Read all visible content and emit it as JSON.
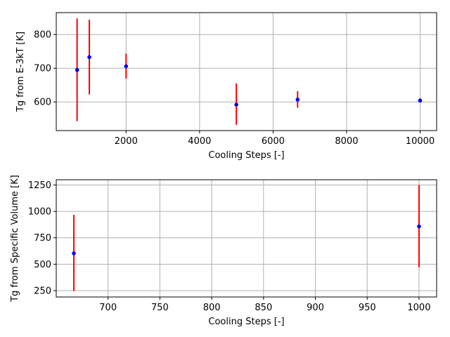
{
  "chart_data": [
    {
      "type": "scatter",
      "title": "",
      "xlabel": "Cooling Steps [-]",
      "ylabel": "Tg from E-3kT [K]",
      "xlim": [
        100,
        10450
      ],
      "ylim": [
        515,
        865
      ],
      "xticks": [
        2000,
        4000,
        6000,
        8000,
        10000
      ],
      "yticks": [
        600,
        700,
        800
      ],
      "grid": true,
      "marker_color": "#0000ff",
      "errorbar_color": "#ff0000",
      "points": [
        {
          "x": 667,
          "y": 695,
          "err_low": 543,
          "err_high": 848
        },
        {
          "x": 1000,
          "y": 733,
          "err_low": 622,
          "err_high": 844
        },
        {
          "x": 2000,
          "y": 706,
          "err_low": 669,
          "err_high": 743
        },
        {
          "x": 5000,
          "y": 592,
          "err_low": 532,
          "err_high": 655
        },
        {
          "x": 6667,
          "y": 607,
          "err_low": 583,
          "err_high": 632
        },
        {
          "x": 10000,
          "y": 604,
          "err_low": 598,
          "err_high": 611
        }
      ]
    },
    {
      "type": "scatter",
      "title": "",
      "xlabel": "Cooling Steps [-]",
      "ylabel": "Tg from Specific Volume [K]",
      "xlim": [
        650,
        1017
      ],
      "ylim": [
        190,
        1300
      ],
      "xticks": [
        700,
        750,
        800,
        850,
        900,
        950,
        1000
      ],
      "yticks": [
        250,
        500,
        750,
        1000,
        1250
      ],
      "grid": true,
      "marker_color": "#0000ff",
      "errorbar_color": "#ff0000",
      "points": [
        {
          "x": 667,
          "y": 603,
          "err_low": 246,
          "err_high": 968
        },
        {
          "x": 1000,
          "y": 858,
          "err_low": 472,
          "err_high": 1250
        }
      ]
    }
  ]
}
